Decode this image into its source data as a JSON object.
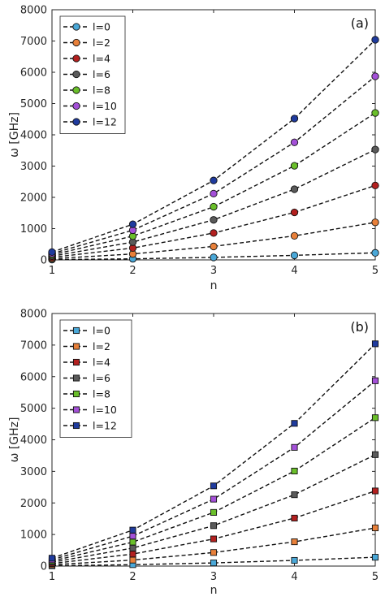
{
  "chart_data": [
    {
      "type": "line",
      "panel_label": "(a)",
      "marker": "circle",
      "xlabel": "n",
      "ylabel": "ω [GHz]",
      "xlim": [
        1,
        5
      ],
      "ylim": [
        0,
        8000
      ],
      "xticks": [
        "1",
        "2",
        "3",
        "4",
        "5"
      ],
      "yticks": [
        "0",
        "1000",
        "2000",
        "3000",
        "4000",
        "5000",
        "6000",
        "7000",
        "8000"
      ],
      "legend_position": "top-left",
      "grid": false,
      "x": [
        1,
        2,
        3,
        4,
        5
      ],
      "series": [
        {
          "name": "l=0",
          "color": "#4aa8d8",
          "values": [
            10,
            35,
            80,
            145,
            225
          ]
        },
        {
          "name": "l=2",
          "color": "#e8803a",
          "values": [
            40,
            190,
            430,
            770,
            1200
          ]
        },
        {
          "name": "l=4",
          "color": "#b3201f",
          "values": [
            80,
            380,
            860,
            1520,
            2380
          ]
        },
        {
          "name": "l=6",
          "color": "#5a5a5a",
          "values": [
            120,
            570,
            1280,
            2260,
            3530
          ]
        },
        {
          "name": "l=8",
          "color": "#6abf2a",
          "values": [
            160,
            760,
            1700,
            3010,
            4700
          ]
        },
        {
          "name": "l=10",
          "color": "#a450d8",
          "values": [
            200,
            950,
            2120,
            3760,
            5870
          ]
        },
        {
          "name": "l=12",
          "color": "#1f3b9e",
          "values": [
            250,
            1140,
            2540,
            4520,
            7040
          ]
        }
      ]
    },
    {
      "type": "line",
      "panel_label": "(b)",
      "marker": "square",
      "xlabel": "n",
      "ylabel": "ω [GHz]",
      "xlim": [
        1,
        5
      ],
      "ylim": [
        0,
        8000
      ],
      "xticks": [
        "1",
        "2",
        "3",
        "4",
        "5"
      ],
      "yticks": [
        "0",
        "1000",
        "2000",
        "3000",
        "4000",
        "5000",
        "6000",
        "7000",
        "8000"
      ],
      "legend_position": "top-left",
      "grid": false,
      "x": [
        1,
        2,
        3,
        4,
        5
      ],
      "series": [
        {
          "name": "l=0",
          "color": "#4aa8d8",
          "values": [
            10,
            45,
            100,
            180,
            280
          ]
        },
        {
          "name": "l=2",
          "color": "#e8803a",
          "values": [
            40,
            190,
            430,
            770,
            1210
          ]
        },
        {
          "name": "l=4",
          "color": "#b3201f",
          "values": [
            80,
            380,
            860,
            1520,
            2380
          ]
        },
        {
          "name": "l=6",
          "color": "#5a5a5a",
          "values": [
            120,
            570,
            1280,
            2260,
            3530
          ]
        },
        {
          "name": "l=8",
          "color": "#6abf2a",
          "values": [
            160,
            760,
            1700,
            3010,
            4700
          ]
        },
        {
          "name": "l=10",
          "color": "#a450d8",
          "values": [
            200,
            950,
            2120,
            3760,
            5870
          ]
        },
        {
          "name": "l=12",
          "color": "#1f3b9e",
          "values": [
            250,
            1140,
            2540,
            4520,
            7040
          ]
        }
      ]
    }
  ]
}
